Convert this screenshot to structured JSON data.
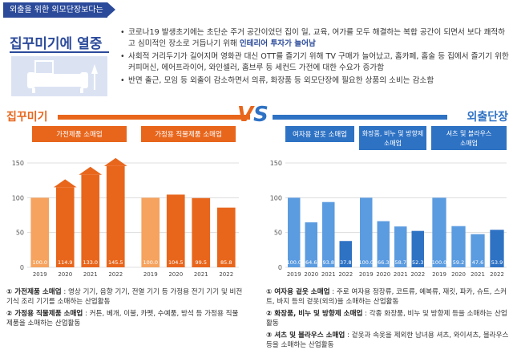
{
  "header": {
    "tag": "외출을 위한 외모단장보다는",
    "title": "집꾸미기에 열중"
  },
  "bullets": [
    {
      "a": "코로나19 발생초기에는 초단순 주거 공간이었던 집이 일, 교육, 여가를 모두 해결하는 복합 공간이 되면서 보다 쾌적하고 심미적인 장소로 거듭나기 위해 ",
      "hl": "인테리어 투자가 늘어남",
      "b": ""
    },
    {
      "a": "사회적 거리두기가 길어지며 영화관 대신 OTT를 즐기기 위해 TV 구매가 늘어났고, 홈카페, 홈술 등 집에서 즐기기 위한 커피머신, 에어프라이어, 와인셀러, 홈브루 등 세컨드 가전에 대한 수요가 증가함",
      "hl": "",
      "b": ""
    },
    {
      "a": "반면 출근, 모임 등 외출이 감소하면서 의류, 화장품 등 외모단장에 필요한 상품의 소비는 감소함",
      "hl": "",
      "b": ""
    }
  ],
  "banner": {
    "left": "집꾸미기",
    "vs_v": "V",
    "vs_s": "S",
    "right": "외출단장"
  },
  "axis": {
    "y_max_label": "150",
    "y_mid_label": "100",
    "y_low_label": "50",
    "y_zero_label": "0"
  },
  "chart_data": [
    {
      "type": "bar",
      "title": "가전제품 소매업",
      "categories": [
        "2019",
        "2020",
        "2021",
        "2022"
      ],
      "values": [
        100.0,
        114.9,
        133.0,
        145.5
      ],
      "value_labels": [
        "100.0",
        "114.9",
        "133.0",
        "145.5"
      ],
      "ylim": [
        0,
        150
      ],
      "color": "#e8661c"
    },
    {
      "type": "bar",
      "title": "가정용 직물제품 소매업",
      "categories": [
        "2019",
        "2020",
        "2021",
        "2022"
      ],
      "values": [
        100.0,
        104.5,
        99.5,
        85.8
      ],
      "value_labels": [
        "100.0",
        "104.5",
        "99.5",
        "85.8"
      ],
      "ylim": [
        0,
        150
      ],
      "color": "#e8661c"
    },
    {
      "type": "bar",
      "title": "여자용 겉옷 소매업",
      "categories": [
        "2019",
        "2020",
        "2021",
        "2022"
      ],
      "values": [
        100.0,
        64.6,
        93.8,
        37.8
      ],
      "value_labels": [
        "100.0",
        "64.6",
        "93.8",
        "37.8"
      ],
      "ylim": [
        0,
        150
      ],
      "color": "#2e72c4"
    },
    {
      "type": "bar",
      "title": "화장품, 비누 및 방향제 소매업",
      "categories": [
        "2019",
        "2020",
        "2021",
        "2022"
      ],
      "values": [
        100.0,
        66.3,
        58.7,
        52.3
      ],
      "value_labels": [
        "100.0",
        "66.3",
        "58.7",
        "52.3"
      ],
      "ylim": [
        0,
        150
      ],
      "color": "#2e72c4"
    },
    {
      "type": "bar",
      "title": "셔츠 및 블라우스 소매업",
      "categories": [
        "2019",
        "2020",
        "2021",
        "2022"
      ],
      "values": [
        100.0,
        59.2,
        47.6,
        53.9
      ],
      "value_labels": [
        "100.0",
        "59.2",
        "47.6",
        "53.9"
      ],
      "ylim": [
        0,
        150
      ],
      "color": "#2e72c4"
    }
  ],
  "notes_left": [
    {
      "k": "① 가전제품 소매업",
      "t": " : 영상 기기, 음향 기기, 전열 기기 등 가정용 전기 기기 및 비전기식 조리 기기를 소매하는 산업활동"
    },
    {
      "k": "② 가정용 직물제품 소매업",
      "t": " : 커튼, 베개, 이불, 카펫, 수예품, 방석 등 가정용 직물 제품을 소매하는 산업활동"
    }
  ],
  "notes_right": [
    {
      "k": "① 여자용 겉옷 소매업",
      "t": " : 주로 여자용 정장류, 코트류, 예복류, 재킷, 파카, 슈트, 스커트, 바지 등의 겉옷(외의)을 소매하는 산업활동"
    },
    {
      "k": "② 화장품, 비누 및 방향제 소매업",
      "t": " : 각종 화장품, 비누 및 방향제 등을 소매하는 산업활동"
    },
    {
      "k": "③ 셔츠 및 블라우스 소매업",
      "t": " : 겉옷과 속옷을 제외한 남녀용 셔츠, 와이셔츠, 블라우스 등을 소매하는 산업활동"
    }
  ]
}
